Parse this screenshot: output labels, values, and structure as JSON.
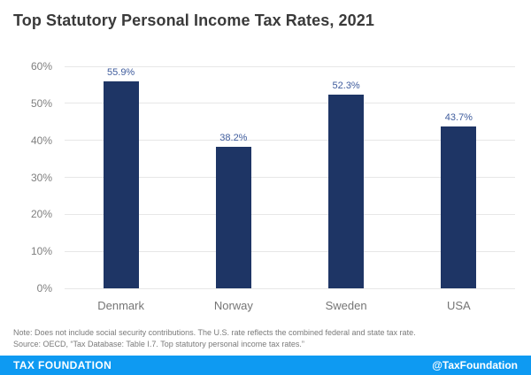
{
  "title": "Top Statutory Personal Income Tax Rates, 2021",
  "chart_data": {
    "type": "bar",
    "categories": [
      "Denmark",
      "Norway",
      "Sweden",
      "USA"
    ],
    "values": [
      55.9,
      38.2,
      52.3,
      43.7
    ],
    "value_labels": [
      "55.9%",
      "38.2%",
      "52.3%",
      "43.7%"
    ],
    "title": "Top Statutory Personal Income Tax Rates, 2021",
    "xlabel": "",
    "ylabel": "",
    "ylim": [
      0,
      60
    ],
    "yticks": [
      "0%",
      "10%",
      "20%",
      "30%",
      "40%",
      "50%",
      "60%"
    ],
    "grid": true,
    "legend": "none",
    "bar_color": "#1e3565",
    "value_label_color": "#3f5c9d"
  },
  "note": "Note: Does not include social security contributions. The U.S. rate reflects the combined federal and state tax rate.",
  "source": "Source: OECD, “Tax Database: Table I.7. Top statutory personal income tax rates.”",
  "footer": {
    "brand": "TAX FOUNDATION",
    "handle": "@TaxFoundation",
    "bg_color": "#0e9af2"
  }
}
